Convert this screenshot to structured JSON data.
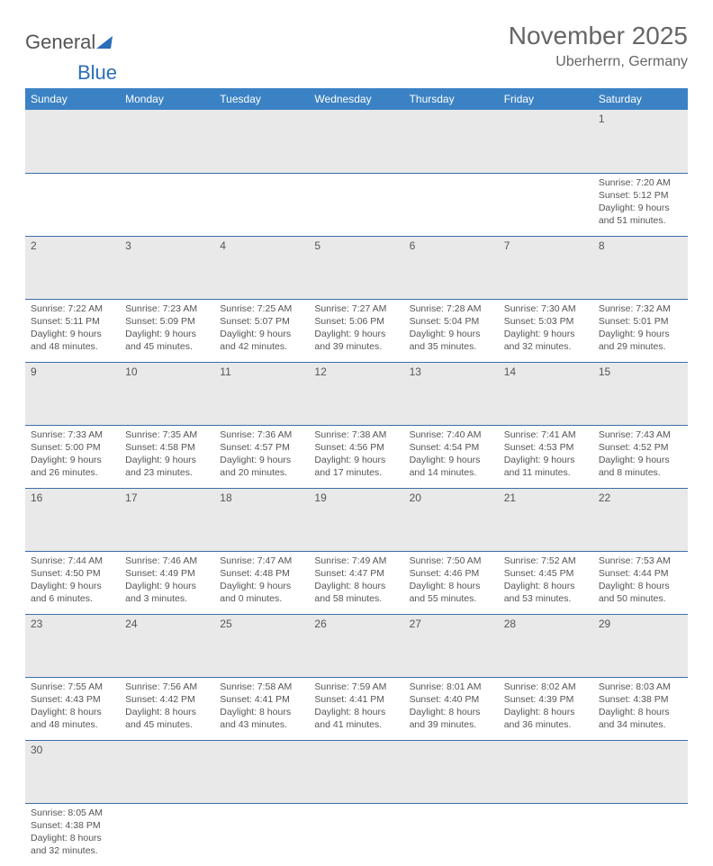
{
  "logo": {
    "text1": "General",
    "text2": "Blue"
  },
  "title": "November 2025",
  "location": "Uberherrn, Germany",
  "weekdays": [
    "Sunday",
    "Monday",
    "Tuesday",
    "Wednesday",
    "Thursday",
    "Friday",
    "Saturday"
  ],
  "colors": {
    "header_bg": "#3b82c4",
    "header_text": "#ffffff",
    "daynum_bg": "#e9e9e9",
    "row_divider": "#3b6fa8",
    "text": "#555555"
  },
  "weeks": [
    {
      "nums": [
        "",
        "",
        "",
        "",
        "",
        "",
        "1"
      ],
      "cells": [
        null,
        null,
        null,
        null,
        null,
        null,
        {
          "sunrise": "Sunrise: 7:20 AM",
          "sunset": "Sunset: 5:12 PM",
          "d1": "Daylight: 9 hours",
          "d2": "and 51 minutes."
        }
      ]
    },
    {
      "nums": [
        "2",
        "3",
        "4",
        "5",
        "6",
        "7",
        "8"
      ],
      "cells": [
        {
          "sunrise": "Sunrise: 7:22 AM",
          "sunset": "Sunset: 5:11 PM",
          "d1": "Daylight: 9 hours",
          "d2": "and 48 minutes."
        },
        {
          "sunrise": "Sunrise: 7:23 AM",
          "sunset": "Sunset: 5:09 PM",
          "d1": "Daylight: 9 hours",
          "d2": "and 45 minutes."
        },
        {
          "sunrise": "Sunrise: 7:25 AM",
          "sunset": "Sunset: 5:07 PM",
          "d1": "Daylight: 9 hours",
          "d2": "and 42 minutes."
        },
        {
          "sunrise": "Sunrise: 7:27 AM",
          "sunset": "Sunset: 5:06 PM",
          "d1": "Daylight: 9 hours",
          "d2": "and 39 minutes."
        },
        {
          "sunrise": "Sunrise: 7:28 AM",
          "sunset": "Sunset: 5:04 PM",
          "d1": "Daylight: 9 hours",
          "d2": "and 35 minutes."
        },
        {
          "sunrise": "Sunrise: 7:30 AM",
          "sunset": "Sunset: 5:03 PM",
          "d1": "Daylight: 9 hours",
          "d2": "and 32 minutes."
        },
        {
          "sunrise": "Sunrise: 7:32 AM",
          "sunset": "Sunset: 5:01 PM",
          "d1": "Daylight: 9 hours",
          "d2": "and 29 minutes."
        }
      ]
    },
    {
      "nums": [
        "9",
        "10",
        "11",
        "12",
        "13",
        "14",
        "15"
      ],
      "cells": [
        {
          "sunrise": "Sunrise: 7:33 AM",
          "sunset": "Sunset: 5:00 PM",
          "d1": "Daylight: 9 hours",
          "d2": "and 26 minutes."
        },
        {
          "sunrise": "Sunrise: 7:35 AM",
          "sunset": "Sunset: 4:58 PM",
          "d1": "Daylight: 9 hours",
          "d2": "and 23 minutes."
        },
        {
          "sunrise": "Sunrise: 7:36 AM",
          "sunset": "Sunset: 4:57 PM",
          "d1": "Daylight: 9 hours",
          "d2": "and 20 minutes."
        },
        {
          "sunrise": "Sunrise: 7:38 AM",
          "sunset": "Sunset: 4:56 PM",
          "d1": "Daylight: 9 hours",
          "d2": "and 17 minutes."
        },
        {
          "sunrise": "Sunrise: 7:40 AM",
          "sunset": "Sunset: 4:54 PM",
          "d1": "Daylight: 9 hours",
          "d2": "and 14 minutes."
        },
        {
          "sunrise": "Sunrise: 7:41 AM",
          "sunset": "Sunset: 4:53 PM",
          "d1": "Daylight: 9 hours",
          "d2": "and 11 minutes."
        },
        {
          "sunrise": "Sunrise: 7:43 AM",
          "sunset": "Sunset: 4:52 PM",
          "d1": "Daylight: 9 hours",
          "d2": "and 8 minutes."
        }
      ]
    },
    {
      "nums": [
        "16",
        "17",
        "18",
        "19",
        "20",
        "21",
        "22"
      ],
      "cells": [
        {
          "sunrise": "Sunrise: 7:44 AM",
          "sunset": "Sunset: 4:50 PM",
          "d1": "Daylight: 9 hours",
          "d2": "and 6 minutes."
        },
        {
          "sunrise": "Sunrise: 7:46 AM",
          "sunset": "Sunset: 4:49 PM",
          "d1": "Daylight: 9 hours",
          "d2": "and 3 minutes."
        },
        {
          "sunrise": "Sunrise: 7:47 AM",
          "sunset": "Sunset: 4:48 PM",
          "d1": "Daylight: 9 hours",
          "d2": "and 0 minutes."
        },
        {
          "sunrise": "Sunrise: 7:49 AM",
          "sunset": "Sunset: 4:47 PM",
          "d1": "Daylight: 8 hours",
          "d2": "and 58 minutes."
        },
        {
          "sunrise": "Sunrise: 7:50 AM",
          "sunset": "Sunset: 4:46 PM",
          "d1": "Daylight: 8 hours",
          "d2": "and 55 minutes."
        },
        {
          "sunrise": "Sunrise: 7:52 AM",
          "sunset": "Sunset: 4:45 PM",
          "d1": "Daylight: 8 hours",
          "d2": "and 53 minutes."
        },
        {
          "sunrise": "Sunrise: 7:53 AM",
          "sunset": "Sunset: 4:44 PM",
          "d1": "Daylight: 8 hours",
          "d2": "and 50 minutes."
        }
      ]
    },
    {
      "nums": [
        "23",
        "24",
        "25",
        "26",
        "27",
        "28",
        "29"
      ],
      "cells": [
        {
          "sunrise": "Sunrise: 7:55 AM",
          "sunset": "Sunset: 4:43 PM",
          "d1": "Daylight: 8 hours",
          "d2": "and 48 minutes."
        },
        {
          "sunrise": "Sunrise: 7:56 AM",
          "sunset": "Sunset: 4:42 PM",
          "d1": "Daylight: 8 hours",
          "d2": "and 45 minutes."
        },
        {
          "sunrise": "Sunrise: 7:58 AM",
          "sunset": "Sunset: 4:41 PM",
          "d1": "Daylight: 8 hours",
          "d2": "and 43 minutes."
        },
        {
          "sunrise": "Sunrise: 7:59 AM",
          "sunset": "Sunset: 4:41 PM",
          "d1": "Daylight: 8 hours",
          "d2": "and 41 minutes."
        },
        {
          "sunrise": "Sunrise: 8:01 AM",
          "sunset": "Sunset: 4:40 PM",
          "d1": "Daylight: 8 hours",
          "d2": "and 39 minutes."
        },
        {
          "sunrise": "Sunrise: 8:02 AM",
          "sunset": "Sunset: 4:39 PM",
          "d1": "Daylight: 8 hours",
          "d2": "and 36 minutes."
        },
        {
          "sunrise": "Sunrise: 8:03 AM",
          "sunset": "Sunset: 4:38 PM",
          "d1": "Daylight: 8 hours",
          "d2": "and 34 minutes."
        }
      ]
    },
    {
      "nums": [
        "30",
        "",
        "",
        "",
        "",
        "",
        ""
      ],
      "cells": [
        {
          "sunrise": "Sunrise: 8:05 AM",
          "sunset": "Sunset: 4:38 PM",
          "d1": "Daylight: 8 hours",
          "d2": "and 32 minutes."
        },
        null,
        null,
        null,
        null,
        null,
        null
      ]
    }
  ]
}
